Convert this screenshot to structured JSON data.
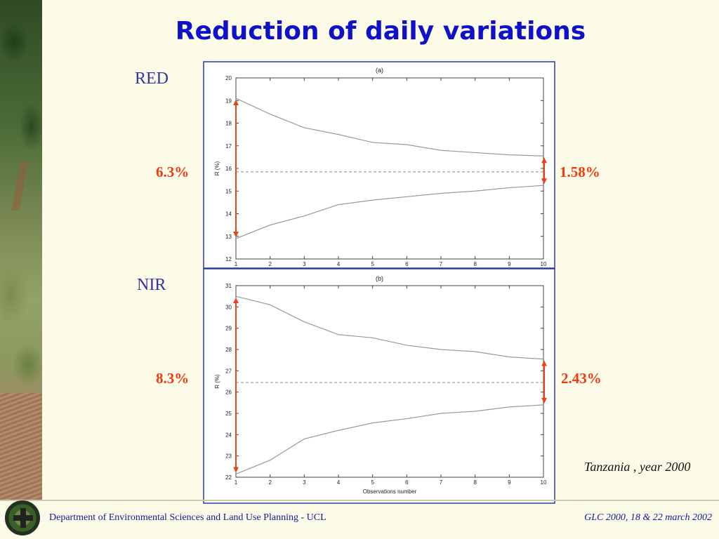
{
  "slide": {
    "title": "Reduction of daily variations",
    "caption": "Tanzania , year 2000",
    "footer_left": "Department of Environmental Sciences and Land Use Planning - UCL",
    "footer_right": "GLC 2000,   18 & 22 march 2002"
  },
  "labels": {
    "red_band": "RED",
    "nir_band": "NIR",
    "red_left_pct": "6.3%",
    "red_right_pct": "1.58%",
    "nir_left_pct": "8.3%",
    "nir_right_pct": "2.43%"
  },
  "colors": {
    "title": "#1010c8",
    "band_label": "#3333aa",
    "arrows": "#e8421c",
    "curves": "#999999",
    "frame": "#2a3a9a"
  },
  "chart_data": [
    {
      "type": "line",
      "title": "(a)",
      "xlabel": "",
      "ylabel": "R (%)",
      "x": [
        1,
        2,
        3,
        4,
        5,
        6,
        7,
        8,
        9,
        10
      ],
      "xlim": [
        1,
        10
      ],
      "ylim": [
        12,
        20
      ],
      "yticks": [
        12,
        13,
        14,
        15,
        16,
        17,
        18,
        19,
        20
      ],
      "series": [
        {
          "values": [
            19.1,
            18.4,
            17.8,
            17.5,
            17.15,
            17.05,
            16.8,
            16.7,
            16.6,
            16.55
          ]
        },
        {
          "values": [
            12.9,
            13.5,
            13.9,
            14.4,
            14.6,
            14.75,
            14.9,
            15.0,
            15.15,
            15.25
          ]
        }
      ],
      "mean_line": 15.85,
      "grid": false
    },
    {
      "type": "line",
      "title": "(b)",
      "xlabel": "Observations number",
      "ylabel": "R (%)",
      "x": [
        1,
        2,
        3,
        4,
        5,
        6,
        7,
        8,
        9,
        10
      ],
      "xlim": [
        1,
        10
      ],
      "ylim": [
        22,
        31
      ],
      "yticks": [
        22,
        23,
        24,
        25,
        26,
        27,
        28,
        29,
        30,
        31
      ],
      "series": [
        {
          "values": [
            30.5,
            30.1,
            29.3,
            28.7,
            28.55,
            28.2,
            28.0,
            27.9,
            27.65,
            27.55
          ]
        },
        {
          "values": [
            22.15,
            22.8,
            23.8,
            24.2,
            24.55,
            24.75,
            25.0,
            25.1,
            25.3,
            25.4
          ]
        }
      ],
      "mean_line": 26.45,
      "grid": false
    }
  ]
}
